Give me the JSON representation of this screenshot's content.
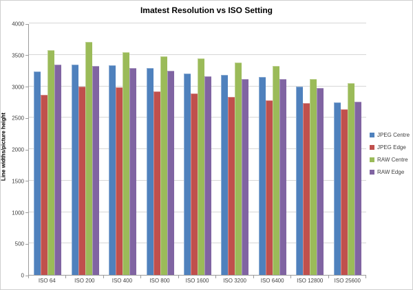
{
  "chart_data": {
    "type": "bar",
    "title": "Imatest Resolution vs ISO Setting",
    "xlabel": "",
    "ylabel": "Line widths/picture height",
    "ylim": [
      0,
      4000
    ],
    "y_ticks": [
      0,
      500,
      1000,
      1500,
      2000,
      2500,
      3000,
      3500,
      4000
    ],
    "grid": true,
    "legend_position": "right",
    "categories": [
      "ISO 64",
      "ISO 200",
      "ISO 400",
      "ISO 800",
      "ISO 1600",
      "ISO 3200",
      "ISO 6400",
      "ISO 12800",
      "ISO 25600"
    ],
    "series": [
      {
        "name": "JPEG Centre",
        "color": "#4F81BD",
        "values": [
          3240,
          3340,
          3330,
          3290,
          3200,
          3180,
          3150,
          2990,
          2740
        ]
      },
      {
        "name": "JPEG Edge",
        "color": "#C0504D",
        "values": [
          2860,
          3000,
          2980,
          2920,
          2880,
          2830,
          2780,
          2730,
          2630
        ]
      },
      {
        "name": "RAW Centre",
        "color": "#9BBB59",
        "values": [
          3570,
          3700,
          3540,
          3480,
          3440,
          3380,
          3320,
          3120,
          3050
        ]
      },
      {
        "name": "RAW Edge",
        "color": "#8064A2",
        "values": [
          3340,
          3320,
          3290,
          3250,
          3160,
          3120,
          3110,
          2970,
          2750
        ]
      }
    ],
    "colors": {
      "gridline": "#d6d6d6",
      "axis": "#9a9a9a",
      "text": "#3f3f3f"
    }
  }
}
